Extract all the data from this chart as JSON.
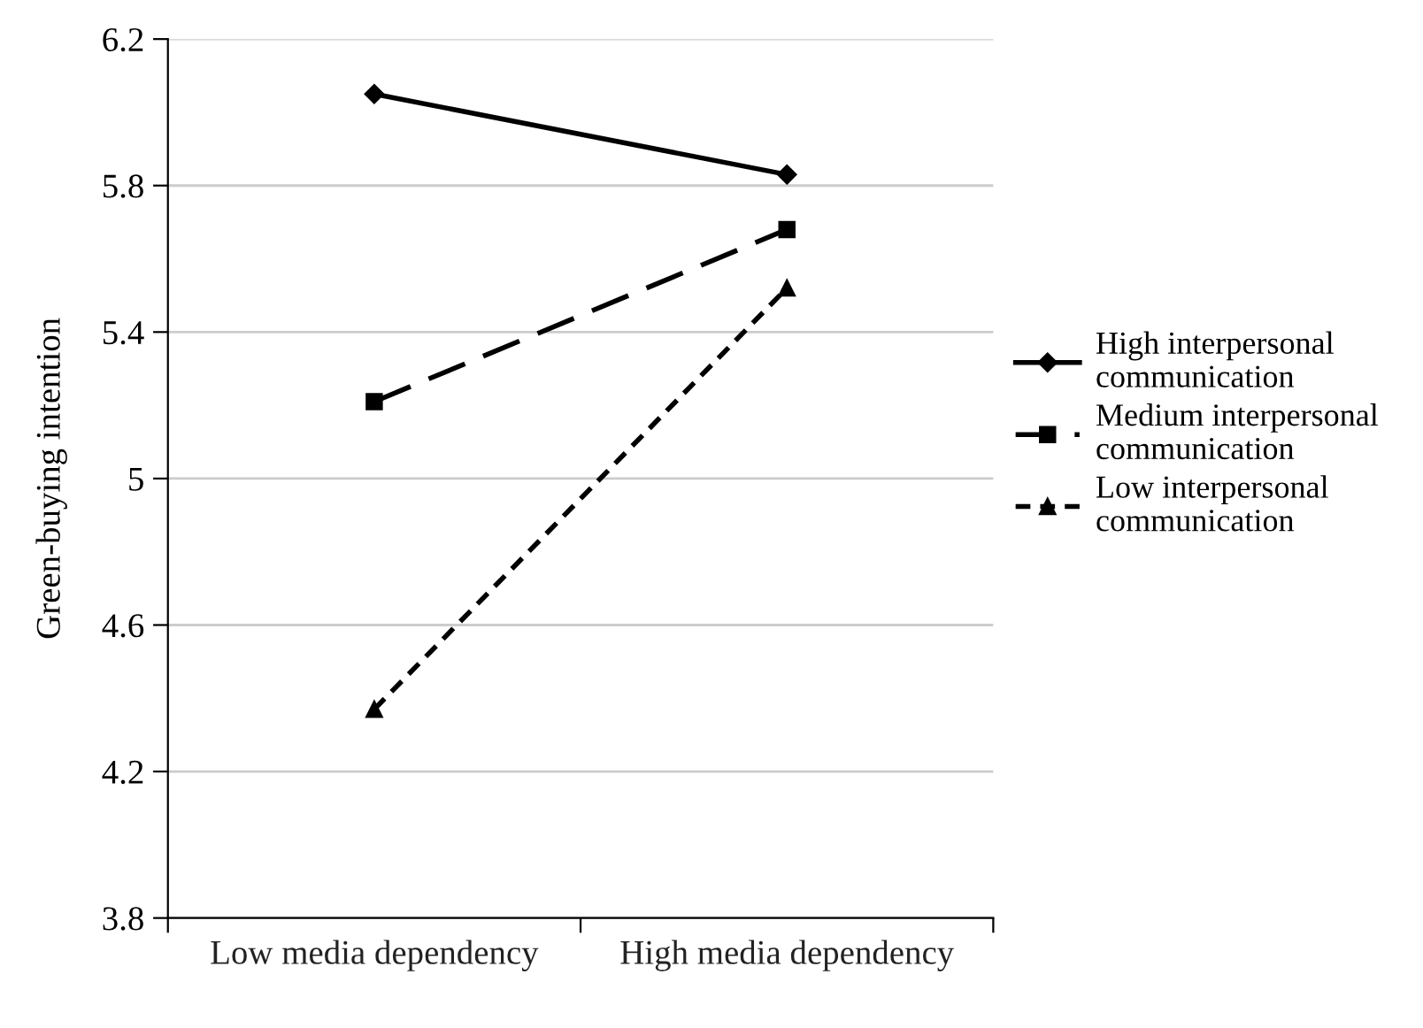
{
  "chart_data": {
    "type": "line",
    "ylabel": "Green-buying intention",
    "categories": [
      "Low media dependency",
      "High media dependency"
    ],
    "series": [
      {
        "name": "High interpersonal\ncommunication",
        "color": "#000000",
        "marker": "diamond",
        "line_style": "solid",
        "values": [
          6.05,
          5.83
        ]
      },
      {
        "name": "Medium interpersonal\ncommunication",
        "color": "#000000",
        "marker": "square",
        "line_style": "dashed",
        "values": [
          5.21,
          5.68
        ]
      },
      {
        "name": "Low interpersonal\ncommunication",
        "color": "#000000",
        "marker": "triangle",
        "line_style": "dotted",
        "values": [
          4.37,
          5.52
        ]
      }
    ],
    "ylim": [
      3.8,
      6.2
    ],
    "yticks": [
      3.8,
      4.2,
      4.6,
      5,
      5.4,
      5.8,
      6.2
    ],
    "grid": "y",
    "legend": "right"
  }
}
